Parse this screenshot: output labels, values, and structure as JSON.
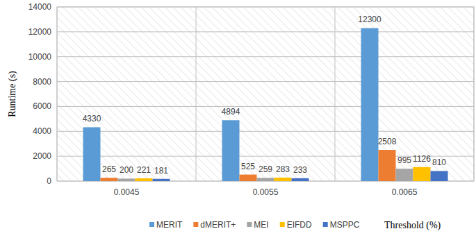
{
  "chart_data": {
    "type": "bar",
    "categories": [
      "0.0045",
      "0.0055",
      "0.0065"
    ],
    "series": [
      {
        "name": "MERIT",
        "color": "#5b9bd5",
        "values": [
          4330,
          4894,
          12300
        ]
      },
      {
        "name": "dMERIT+",
        "color": "#ed7d31",
        "values": [
          265,
          525,
          2508
        ]
      },
      {
        "name": "MEI",
        "color": "#a5a5a5",
        "values": [
          200,
          259,
          995
        ]
      },
      {
        "name": "EIFDD",
        "color": "#ffc000",
        "values": [
          221,
          283,
          1126
        ]
      },
      {
        "name": "MSPPC",
        "color": "#4472c4",
        "values": [
          181,
          233,
          810
        ]
      }
    ],
    "y_label": "Runtime (s)",
    "x_label": "Threshold (%)",
    "ylim": [
      0,
      14000
    ],
    "yticks": [
      0,
      2000,
      4000,
      6000,
      8000,
      10000,
      12000,
      14000
    ],
    "grid": true,
    "legend": "bottom",
    "data_labels": true
  }
}
